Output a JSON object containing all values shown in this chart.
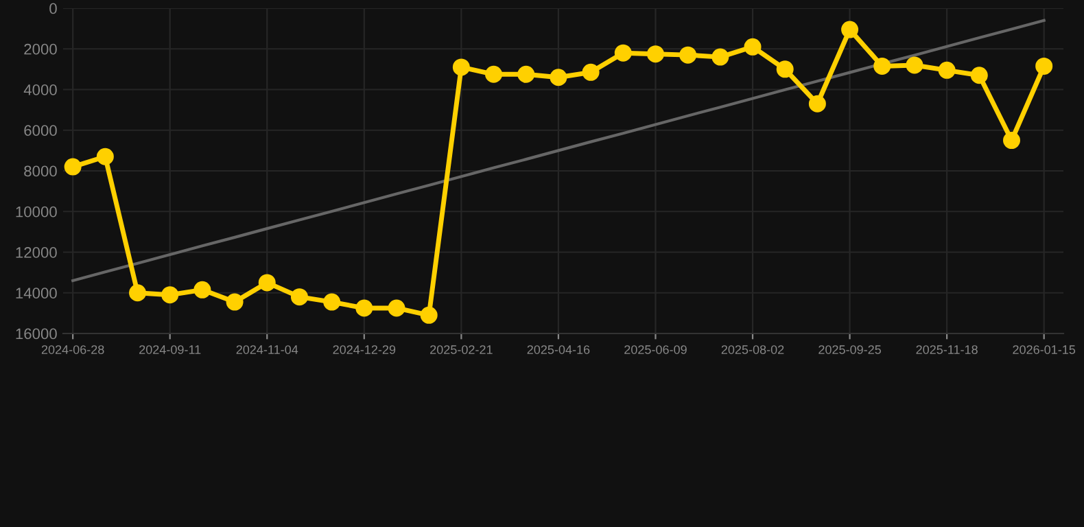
{
  "chart_data": {
    "type": "line",
    "categories": [
      "2024-06-28",
      null,
      null,
      "2024-09-11",
      null,
      null,
      "2024-11-04",
      null,
      null,
      "2024-12-29",
      null,
      null,
      "2025-02-21",
      null,
      null,
      "2025-04-16",
      null,
      null,
      "2025-06-09",
      null,
      null,
      "2025-08-02",
      null,
      null,
      "2025-09-25",
      null,
      null,
      "2025-11-18",
      null,
      null,
      "2026-01-15"
    ],
    "series": [
      {
        "color": "#ffd000",
        "marker": "circle",
        "values": [
          7800,
          7300,
          14000,
          14100,
          13850,
          14450,
          13500,
          14200,
          14450,
          14750,
          14750,
          15100,
          2900,
          3250,
          3250,
          3400,
          3150,
          2200,
          2250,
          2300,
          2400,
          1900,
          3000,
          4700,
          1050,
          2850,
          2800,
          3050,
          3300,
          6500,
          2850
        ]
      },
      {
        "color": "#666666",
        "marker": "none",
        "values": [
          13400,
          12970,
          12550,
          12120,
          11690,
          11270,
          10840,
          10410,
          9990,
          9560,
          9130,
          8710,
          8280,
          7850,
          7430,
          7000,
          6570,
          6150,
          5720,
          5290,
          4870,
          4440,
          4010,
          3590,
          3160,
          2730,
          2310,
          1880,
          1450,
          1030,
          600
        ]
      }
    ],
    "ylim": [
      16000,
      0
    ],
    "yticks": [
      0,
      2000,
      4000,
      6000,
      8000,
      10000,
      12000,
      14000,
      16000
    ],
    "grid": true,
    "line_style": "solid"
  }
}
